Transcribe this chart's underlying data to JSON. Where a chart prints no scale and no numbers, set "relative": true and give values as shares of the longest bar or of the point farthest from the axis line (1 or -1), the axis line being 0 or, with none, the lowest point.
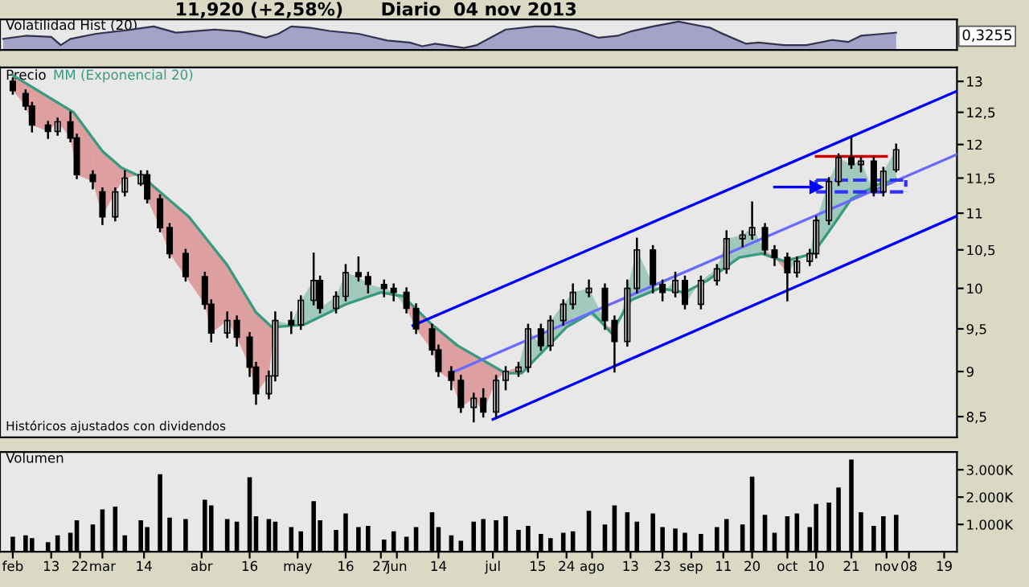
{
  "chart_data": [
    {
      "type": "area",
      "relative": true,
      "title": "11,920 (+2,58%)",
      "subtitle": "Diario  04 nov 2013",
      "ylabel": "Volatilidad Hist (20)",
      "tick_labels": false,
      "xlim": [
        "2013-01-28",
        "2013-11-23"
      ],
      "annotations": [
        "0,3255"
      ],
      "series": [
        {
          "color": "#a3a3c8",
          "x": [
            "2013-01-29",
            "2013-02-05",
            "2013-02-13",
            "2013-02-16",
            "2013-02-19",
            "2013-02-27",
            "2013-03-09",
            "2013-03-17",
            "2013-03-24",
            "2013-04-05",
            "2013-04-13",
            "2013-04-21",
            "2013-04-25",
            "2013-04-29",
            "2013-05-05",
            "2013-05-11",
            "2013-05-20",
            "2013-05-29",
            "2013-06-05",
            "2013-06-09",
            "2013-06-13",
            "2013-06-22",
            "2013-06-26",
            "2013-07-05",
            "2013-07-14",
            "2013-07-20",
            "2013-07-27",
            "2013-08-03",
            "2013-08-09",
            "2013-08-13",
            "2013-08-20",
            "2013-08-28",
            "2013-09-03",
            "2013-09-07",
            "2013-09-10",
            "2013-09-18",
            "2013-09-22",
            "2013-09-30",
            "2013-10-07",
            "2013-10-15",
            "2013-10-20",
            "2013-10-24",
            "2013-10-31",
            "2013-11-04"
          ],
          "values": [
            0.39,
            0.5,
            0.46,
            0.17,
            0.39,
            0.57,
            0.7,
            0.83,
            0.61,
            0.72,
            0.65,
            0.43,
            0.57,
            0.83,
            0.78,
            0.67,
            0.57,
            0.33,
            0.26,
            0.13,
            0.22,
            0.07,
            0.17,
            0.72,
            0.83,
            0.83,
            0.7,
            0.43,
            0.5,
            0.65,
            0.83,
            1.0,
            0.87,
            0.78,
            0.61,
            0.22,
            0.26,
            0.17,
            0.17,
            0.35,
            0.28,
            0.5,
            0.57,
            0.61
          ]
        }
      ]
    },
    {
      "type": "candlestick",
      "ylabel": "Precio",
      "legend": "top left",
      "tick_labels": "y",
      "log": true,
      "color": "#000000",
      "xlim": [
        "2013-01-28",
        "2013-11-23"
      ],
      "ylim": [
        8.28,
        13.23
      ],
      "yticks": [
        {
          "value": 8.5,
          "label": "8,5"
        },
        9,
        {
          "value": 9.5,
          "label": "9,5"
        },
        10,
        {
          "value": 10.5,
          "label": "10,5"
        },
        11,
        {
          "value": 11.5,
          "label": "11,5"
        },
        12,
        {
          "value": 12.5,
          "label": "12,5"
        },
        13
      ],
      "annotations": [
        "Históricos ajustados con dividendos"
      ],
      "x": [
        "2013-02-01",
        "2013-02-05",
        "2013-02-07",
        "2013-02-12",
        "2013-02-15",
        "2013-02-19",
        "2013-02-21",
        "2013-02-26",
        "2013-03-01",
        "2013-03-05",
        "2013-03-08",
        "2013-03-13",
        "2013-03-15",
        "2013-03-19",
        "2013-03-22",
        "2013-03-27",
        "2013-04-02",
        "2013-04-04",
        "2013-04-09",
        "2013-04-12",
        "2013-04-16",
        "2013-04-18",
        "2013-04-22",
        "2013-04-24",
        "2013-04-29",
        "2013-05-02",
        "2013-05-06",
        "2013-05-08",
        "2013-05-13",
        "2013-05-16",
        "2013-05-20",
        "2013-05-23",
        "2013-05-28",
        "2013-05-31",
        "2013-06-04",
        "2013-06-07",
        "2013-06-12",
        "2013-06-14",
        "2013-06-18",
        "2013-06-21",
        "2013-06-25",
        "2013-06-28",
        "2013-07-02",
        "2013-07-05",
        "2013-07-09",
        "2013-07-12",
        "2013-07-16",
        "2013-07-19",
        "2013-07-23",
        "2013-07-26",
        "2013-07-31",
        "2013-08-05",
        "2013-08-08",
        "2013-08-12",
        "2013-08-15",
        "2013-08-20",
        "2013-08-23",
        "2013-08-27",
        "2013-08-30",
        "2013-09-04",
        "2013-09-09",
        "2013-09-12",
        "2013-09-17",
        "2013-09-20",
        "2013-09-24",
        "2013-09-27",
        "2013-10-01",
        "2013-10-04",
        "2013-10-08",
        "2013-10-10",
        "2013-10-14",
        "2013-10-17",
        "2013-10-21",
        "2013-10-24",
        "2013-10-28",
        "2013-10-31",
        "2013-11-04"
      ],
      "ohlc": [
        [
          13.0,
          13.05,
          12.8,
          12.85
        ],
        [
          12.8,
          12.85,
          12.55,
          12.6
        ],
        [
          12.6,
          12.65,
          12.2,
          12.3
        ],
        [
          12.3,
          12.35,
          12.1,
          12.2
        ],
        [
          12.2,
          12.4,
          12.15,
          12.35
        ],
        [
          12.35,
          12.5,
          12.05,
          12.1
        ],
        [
          12.1,
          12.15,
          11.5,
          11.55
        ],
        [
          11.55,
          11.6,
          11.35,
          11.45
        ],
        [
          11.3,
          11.35,
          10.85,
          10.95
        ],
        [
          10.95,
          11.35,
          10.9,
          11.3
        ],
        [
          11.3,
          11.6,
          11.25,
          11.5
        ],
        [
          11.42,
          11.6,
          11.4,
          11.55
        ],
        [
          11.55,
          11.6,
          11.15,
          11.2
        ],
        [
          11.2,
          11.25,
          10.75,
          10.8
        ],
        [
          10.8,
          10.85,
          10.4,
          10.45
        ],
        [
          10.45,
          10.5,
          10.1,
          10.15
        ],
        [
          10.15,
          10.2,
          9.75,
          9.8
        ],
        [
          9.8,
          9.85,
          9.35,
          9.45
        ],
        [
          9.45,
          9.7,
          9.4,
          9.6
        ],
        [
          9.6,
          9.65,
          9.3,
          9.4
        ],
        [
          9.4,
          9.45,
          8.95,
          9.05
        ],
        [
          9.05,
          9.1,
          8.64,
          8.75
        ],
        [
          8.75,
          9.0,
          8.7,
          8.95
        ],
        [
          8.95,
          9.7,
          8.9,
          9.6
        ],
        [
          9.6,
          9.7,
          9.45,
          9.55
        ],
        [
          9.55,
          9.9,
          9.5,
          9.85
        ],
        [
          9.85,
          10.45,
          9.8,
          10.1
        ],
        [
          10.1,
          10.15,
          9.7,
          9.75
        ],
        [
          9.75,
          9.95,
          9.7,
          9.9
        ],
        [
          9.9,
          10.3,
          9.85,
          10.2
        ],
        [
          10.2,
          10.4,
          10.1,
          10.15
        ],
        [
          10.15,
          10.2,
          9.95,
          10.05
        ],
        [
          10.05,
          10.1,
          9.9,
          10.0
        ],
        [
          10.0,
          10.05,
          9.85,
          9.95
        ],
        [
          9.95,
          10.0,
          9.7,
          9.75
        ],
        [
          9.75,
          9.8,
          9.45,
          9.5
        ],
        [
          9.5,
          9.55,
          9.2,
          9.25
        ],
        [
          9.25,
          9.3,
          8.95,
          9.0
        ],
        [
          9.0,
          9.05,
          8.8,
          8.9
        ],
        [
          8.9,
          8.95,
          8.55,
          8.6
        ],
        [
          8.6,
          8.75,
          8.45,
          8.7
        ],
        [
          8.7,
          8.8,
          8.5,
          8.55
        ],
        [
          8.55,
          8.95,
          8.5,
          8.9
        ],
        [
          8.9,
          9.05,
          8.8,
          9.0
        ],
        [
          9.0,
          9.1,
          8.95,
          9.05
        ],
        [
          9.05,
          9.55,
          9.0,
          9.5
        ],
        [
          9.5,
          9.55,
          9.25,
          9.3
        ],
        [
          9.3,
          9.65,
          9.25,
          9.6
        ],
        [
          9.6,
          9.85,
          9.55,
          9.8
        ],
        [
          9.8,
          10.05,
          9.75,
          9.95
        ],
        [
          9.95,
          10.1,
          9.9,
          10.0
        ],
        [
          10.0,
          10.05,
          9.5,
          9.6
        ],
        [
          9.6,
          9.65,
          9.0,
          9.35
        ],
        [
          9.35,
          10.1,
          9.3,
          10.0
        ],
        [
          10.0,
          10.65,
          9.95,
          10.5
        ],
        [
          10.5,
          10.55,
          9.95,
          10.05
        ],
        [
          10.05,
          10.1,
          9.85,
          9.95
        ],
        [
          9.95,
          10.2,
          9.9,
          10.1
        ],
        [
          10.1,
          10.15,
          9.75,
          9.8
        ],
        [
          9.8,
          10.15,
          9.75,
          10.1
        ],
        [
          10.1,
          10.3,
          10.05,
          10.25
        ],
        [
          10.25,
          10.75,
          10.2,
          10.65
        ],
        [
          10.65,
          10.75,
          10.55,
          10.7
        ],
        [
          10.7,
          11.15,
          10.65,
          10.8
        ],
        [
          10.8,
          10.85,
          10.45,
          10.5
        ],
        [
          10.5,
          10.55,
          10.3,
          10.4
        ],
        [
          10.4,
          10.45,
          9.85,
          10.2
        ],
        [
          10.2,
          10.4,
          10.15,
          10.35
        ],
        [
          10.35,
          10.5,
          10.3,
          10.45
        ],
        [
          10.45,
          10.95,
          10.4,
          10.9
        ],
        [
          10.9,
          11.5,
          10.85,
          11.45
        ],
        [
          11.45,
          11.85,
          11.4,
          11.8
        ],
        [
          11.8,
          12.1,
          11.65,
          11.7
        ],
        [
          11.7,
          11.8,
          11.6,
          11.75
        ],
        [
          11.75,
          11.8,
          11.25,
          11.3
        ],
        [
          11.3,
          11.65,
          11.25,
          11.6
        ],
        [
          11.62,
          12.0,
          11.6,
          11.92
        ]
      ],
      "series": [
        {
          "type": "line",
          "name": "MM (Exponencial 20)",
          "color": "#3a9a80",
          "colors": [
            "#cc3333",
            "#cc3333",
            "#cc3333",
            "#cc3333",
            "#cc3333",
            "#cc3333",
            "#cc3333",
            "#cc3333",
            "#cc3333",
            "#3a9a80",
            "#3a9a80",
            "#3a9a80",
            "#3a9a80",
            "#cc3333",
            "#cc3333",
            "#cc3333",
            "#3a9a80",
            "#3a9a80",
            "#3a9a80",
            "#cc3333",
            "#3a9a80",
            "#3a9a80",
            "#3a9a80",
            "#3a9a80",
            "#3a9a80",
            "#3a9a80",
            "#cc3333",
            "#3a9a80",
            "#3a9a80",
            "#3a9a80",
            "#3a9a80",
            "#3a9a80"
          ],
          "x": [
            "2013-02-01",
            "2013-02-20",
            "2013-03-01",
            "2013-03-07",
            "2013-03-14",
            "2013-03-28",
            "2013-04-09",
            "2013-04-18",
            "2013-04-23",
            "2013-05-03",
            "2013-05-16",
            "2013-05-27",
            "2013-06-03",
            "2013-06-12",
            "2013-06-20",
            "2013-07-05",
            "2013-07-10",
            "2013-07-24",
            "2013-08-01",
            "2013-08-07",
            "2013-08-13",
            "2013-08-22",
            "2013-08-30",
            "2013-09-06",
            "2013-09-16",
            "2013-09-23",
            "2013-09-30",
            "2013-10-09",
            "2013-10-14",
            "2013-10-21",
            "2013-10-29",
            "2013-11-04"
          ],
          "values": [
            13.1,
            12.5,
            11.9,
            11.65,
            11.5,
            10.95,
            10.3,
            9.7,
            9.52,
            9.55,
            9.8,
            9.95,
            9.9,
            9.55,
            9.3,
            8.98,
            8.98,
            9.52,
            9.7,
            9.45,
            9.85,
            10.0,
            9.95,
            10.1,
            10.4,
            10.45,
            10.35,
            10.45,
            10.75,
            11.2,
            11.4,
            11.48
          ]
        },
        {
          "type": "line",
          "color": "#0000ff",
          "x": [
            "2013-06-06",
            "2013-11-23"
          ],
          "values": [
            9.54,
            12.84
          ]
        },
        {
          "type": "line",
          "color": "#6a6aff",
          "x": [
            "2013-06-19",
            "2013-11-23"
          ],
          "values": [
            9.0,
            11.85
          ]
        },
        {
          "type": "line",
          "color": "#0000ff",
          "x": [
            "2013-07-01",
            "2013-11-23"
          ],
          "values": [
            8.47,
            10.96
          ]
        },
        {
          "type": "line",
          "color": "#cc0000",
          "x": [
            "2013-10-10",
            "2013-11-01"
          ],
          "values": [
            11.82,
            11.82
          ]
        },
        {
          "type": "line",
          "color": "#3030ff",
          "line_style": "dashed",
          "x": [
            "2013-10-10",
            "2013-11-07"
          ],
          "values": [
            11.47,
            11.47
          ]
        },
        {
          "type": "line",
          "color": "#3030ff",
          "line_style": "dashed",
          "x": [
            "2013-10-10",
            "2013-11-07"
          ],
          "values": [
            11.3,
            11.3
          ]
        },
        {
          "type": "line",
          "color": "#0000ff",
          "marker": "triangle",
          "x": [
            "2013-09-27",
            "2013-10-10"
          ],
          "values": [
            11.37,
            11.37
          ]
        }
      ]
    },
    {
      "type": "bar",
      "ylabel": "Volumen",
      "color": "#000000",
      "xlim": [
        "2013-01-28",
        "2013-11-23"
      ],
      "ylim": [
        0,
        3650
      ],
      "yticks": [
        {
          "value": 1000,
          "label": "1.000K"
        },
        {
          "value": 2000,
          "label": "2.000K"
        },
        {
          "value": 3000,
          "label": "3.000K"
        }
      ],
      "xticks": [
        {
          "value": "2013-02-01",
          "label": "feb"
        },
        {
          "value": "2013-02-13",
          "label": "13"
        },
        {
          "value": "2013-02-22",
          "label": "22"
        },
        {
          "value": "2013-03-01",
          "label": "mar"
        },
        {
          "value": "2013-03-14",
          "label": "14"
        },
        {
          "value": "2013-04-01",
          "label": "abr"
        },
        {
          "value": "2013-04-16",
          "label": "16"
        },
        {
          "value": "2013-05-01",
          "label": "may"
        },
        {
          "value": "2013-05-16",
          "label": "16"
        },
        {
          "value": "2013-05-27",
          "label": "27"
        },
        {
          "value": "2013-06-01",
          "label": "jun"
        },
        {
          "value": "2013-06-14",
          "label": "14"
        },
        {
          "value": "2013-07-01",
          "label": "jul"
        },
        {
          "value": "2013-07-15",
          "label": "15"
        },
        {
          "value": "2013-07-24",
          "label": "24"
        },
        {
          "value": "2013-08-01",
          "label": "ago"
        },
        {
          "value": "2013-08-13",
          "label": "13"
        },
        {
          "value": "2013-08-23",
          "label": "23"
        },
        {
          "value": "2013-09-01",
          "label": "sep"
        },
        {
          "value": "2013-09-11",
          "label": "11"
        },
        {
          "value": "2013-09-20",
          "label": "20"
        },
        {
          "value": "2013-10-01",
          "label": "oct"
        },
        {
          "value": "2013-10-10",
          "label": "10"
        },
        {
          "value": "2013-10-21",
          "label": "21"
        },
        {
          "value": "2013-11-01",
          "label": "nov"
        },
        {
          "value": "2013-11-08",
          "label": "08"
        },
        {
          "value": "2013-11-19",
          "label": "19"
        }
      ],
      "x": [
        "2013-02-01",
        "2013-02-05",
        "2013-02-07",
        "2013-02-12",
        "2013-02-15",
        "2013-02-19",
        "2013-02-21",
        "2013-02-26",
        "2013-03-01",
        "2013-03-05",
        "2013-03-08",
        "2013-03-13",
        "2013-03-15",
        "2013-03-19",
        "2013-03-22",
        "2013-03-27",
        "2013-04-02",
        "2013-04-04",
        "2013-04-09",
        "2013-04-12",
        "2013-04-16",
        "2013-04-18",
        "2013-04-22",
        "2013-04-24",
        "2013-04-29",
        "2013-05-02",
        "2013-05-06",
        "2013-05-08",
        "2013-05-13",
        "2013-05-16",
        "2013-05-20",
        "2013-05-23",
        "2013-05-28",
        "2013-05-31",
        "2013-06-04",
        "2013-06-07",
        "2013-06-12",
        "2013-06-14",
        "2013-06-18",
        "2013-06-21",
        "2013-06-25",
        "2013-06-28",
        "2013-07-02",
        "2013-07-05",
        "2013-07-09",
        "2013-07-12",
        "2013-07-16",
        "2013-07-19",
        "2013-07-23",
        "2013-07-26",
        "2013-07-31",
        "2013-08-05",
        "2013-08-08",
        "2013-08-12",
        "2013-08-15",
        "2013-08-20",
        "2013-08-23",
        "2013-08-27",
        "2013-08-30",
        "2013-09-04",
        "2013-09-09",
        "2013-09-12",
        "2013-09-17",
        "2013-09-20",
        "2013-09-24",
        "2013-09-27",
        "2013-10-01",
        "2013-10-04",
        "2013-10-08",
        "2013-10-10",
        "2013-10-14",
        "2013-10-17",
        "2013-10-21",
        "2013-10-24",
        "2013-10-28",
        "2013-10-31",
        "2013-11-04"
      ],
      "values": [
        550,
        600,
        500,
        350,
        600,
        700,
        1150,
        1000,
        1550,
        1650,
        600,
        1150,
        900,
        2840,
        1250,
        1200,
        1900,
        1700,
        1200,
        1100,
        2730,
        1300,
        1200,
        1100,
        900,
        750,
        1850,
        1150,
        800,
        1400,
        900,
        950,
        450,
        750,
        550,
        900,
        1450,
        900,
        600,
        400,
        1100,
        1200,
        1150,
        1300,
        800,
        950,
        650,
        500,
        700,
        750,
        1500,
        1000,
        1700,
        1450,
        1100,
        1400,
        900,
        850,
        700,
        650,
        900,
        1200,
        1000,
        2750,
        1350,
        700,
        1300,
        1400,
        900,
        1750,
        1800,
        2350,
        3370,
        1450,
        950,
        1300,
        1350
      ]
    }
  ]
}
